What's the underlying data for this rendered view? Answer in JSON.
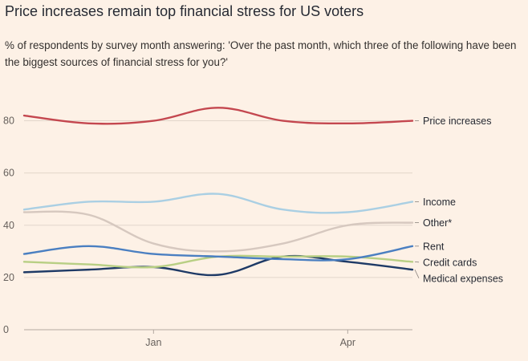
{
  "title": "Price increases remain top financial stress for US voters",
  "subtitle": "% of respondents by survey month answering: 'Over the past month, which three of the following have been the biggest sources of financial stress for you?'",
  "colors": {
    "background": "#fdf1e6",
    "grid": "#e2d6cb",
    "axis": "#b3a9a0"
  },
  "chart_data": {
    "type": "line",
    "title": "Price increases remain top financial stress for US voters",
    "xlabel": "",
    "ylabel": "%",
    "ylim": [
      0,
      90
    ],
    "xlim": [
      0,
      6
    ],
    "yticks": [
      0,
      20,
      40,
      60,
      80
    ],
    "xticks": [
      {
        "x": 2,
        "label": "Jan"
      },
      {
        "x": 5,
        "label": "Apr"
      }
    ],
    "x": [
      0,
      1,
      2,
      3,
      4,
      5,
      6
    ],
    "grid": true,
    "legend": "right-end labels",
    "series": [
      {
        "name": "Price increases",
        "color": "#c4474f",
        "values": [
          82,
          79,
          80,
          85,
          80,
          79,
          80
        ]
      },
      {
        "name": "Income",
        "color": "#aacfe3",
        "values": [
          46,
          49,
          49,
          52,
          46,
          45,
          49
        ]
      },
      {
        "name": "Other*",
        "color": "#d6c8bf",
        "values": [
          45,
          44,
          33,
          30,
          33,
          40,
          41
        ]
      },
      {
        "name": "Rent",
        "color": "#4a7fc1",
        "values": [
          29,
          32,
          29,
          28,
          27,
          27,
          32
        ]
      },
      {
        "name": "Credit cards",
        "color": "#b8cf84",
        "values": [
          26,
          25,
          24,
          28,
          28,
          28,
          26
        ]
      },
      {
        "name": "Medical expenses",
        "color": "#1e3a66",
        "values": [
          22,
          23,
          24,
          21,
          28,
          26,
          23
        ]
      }
    ]
  }
}
